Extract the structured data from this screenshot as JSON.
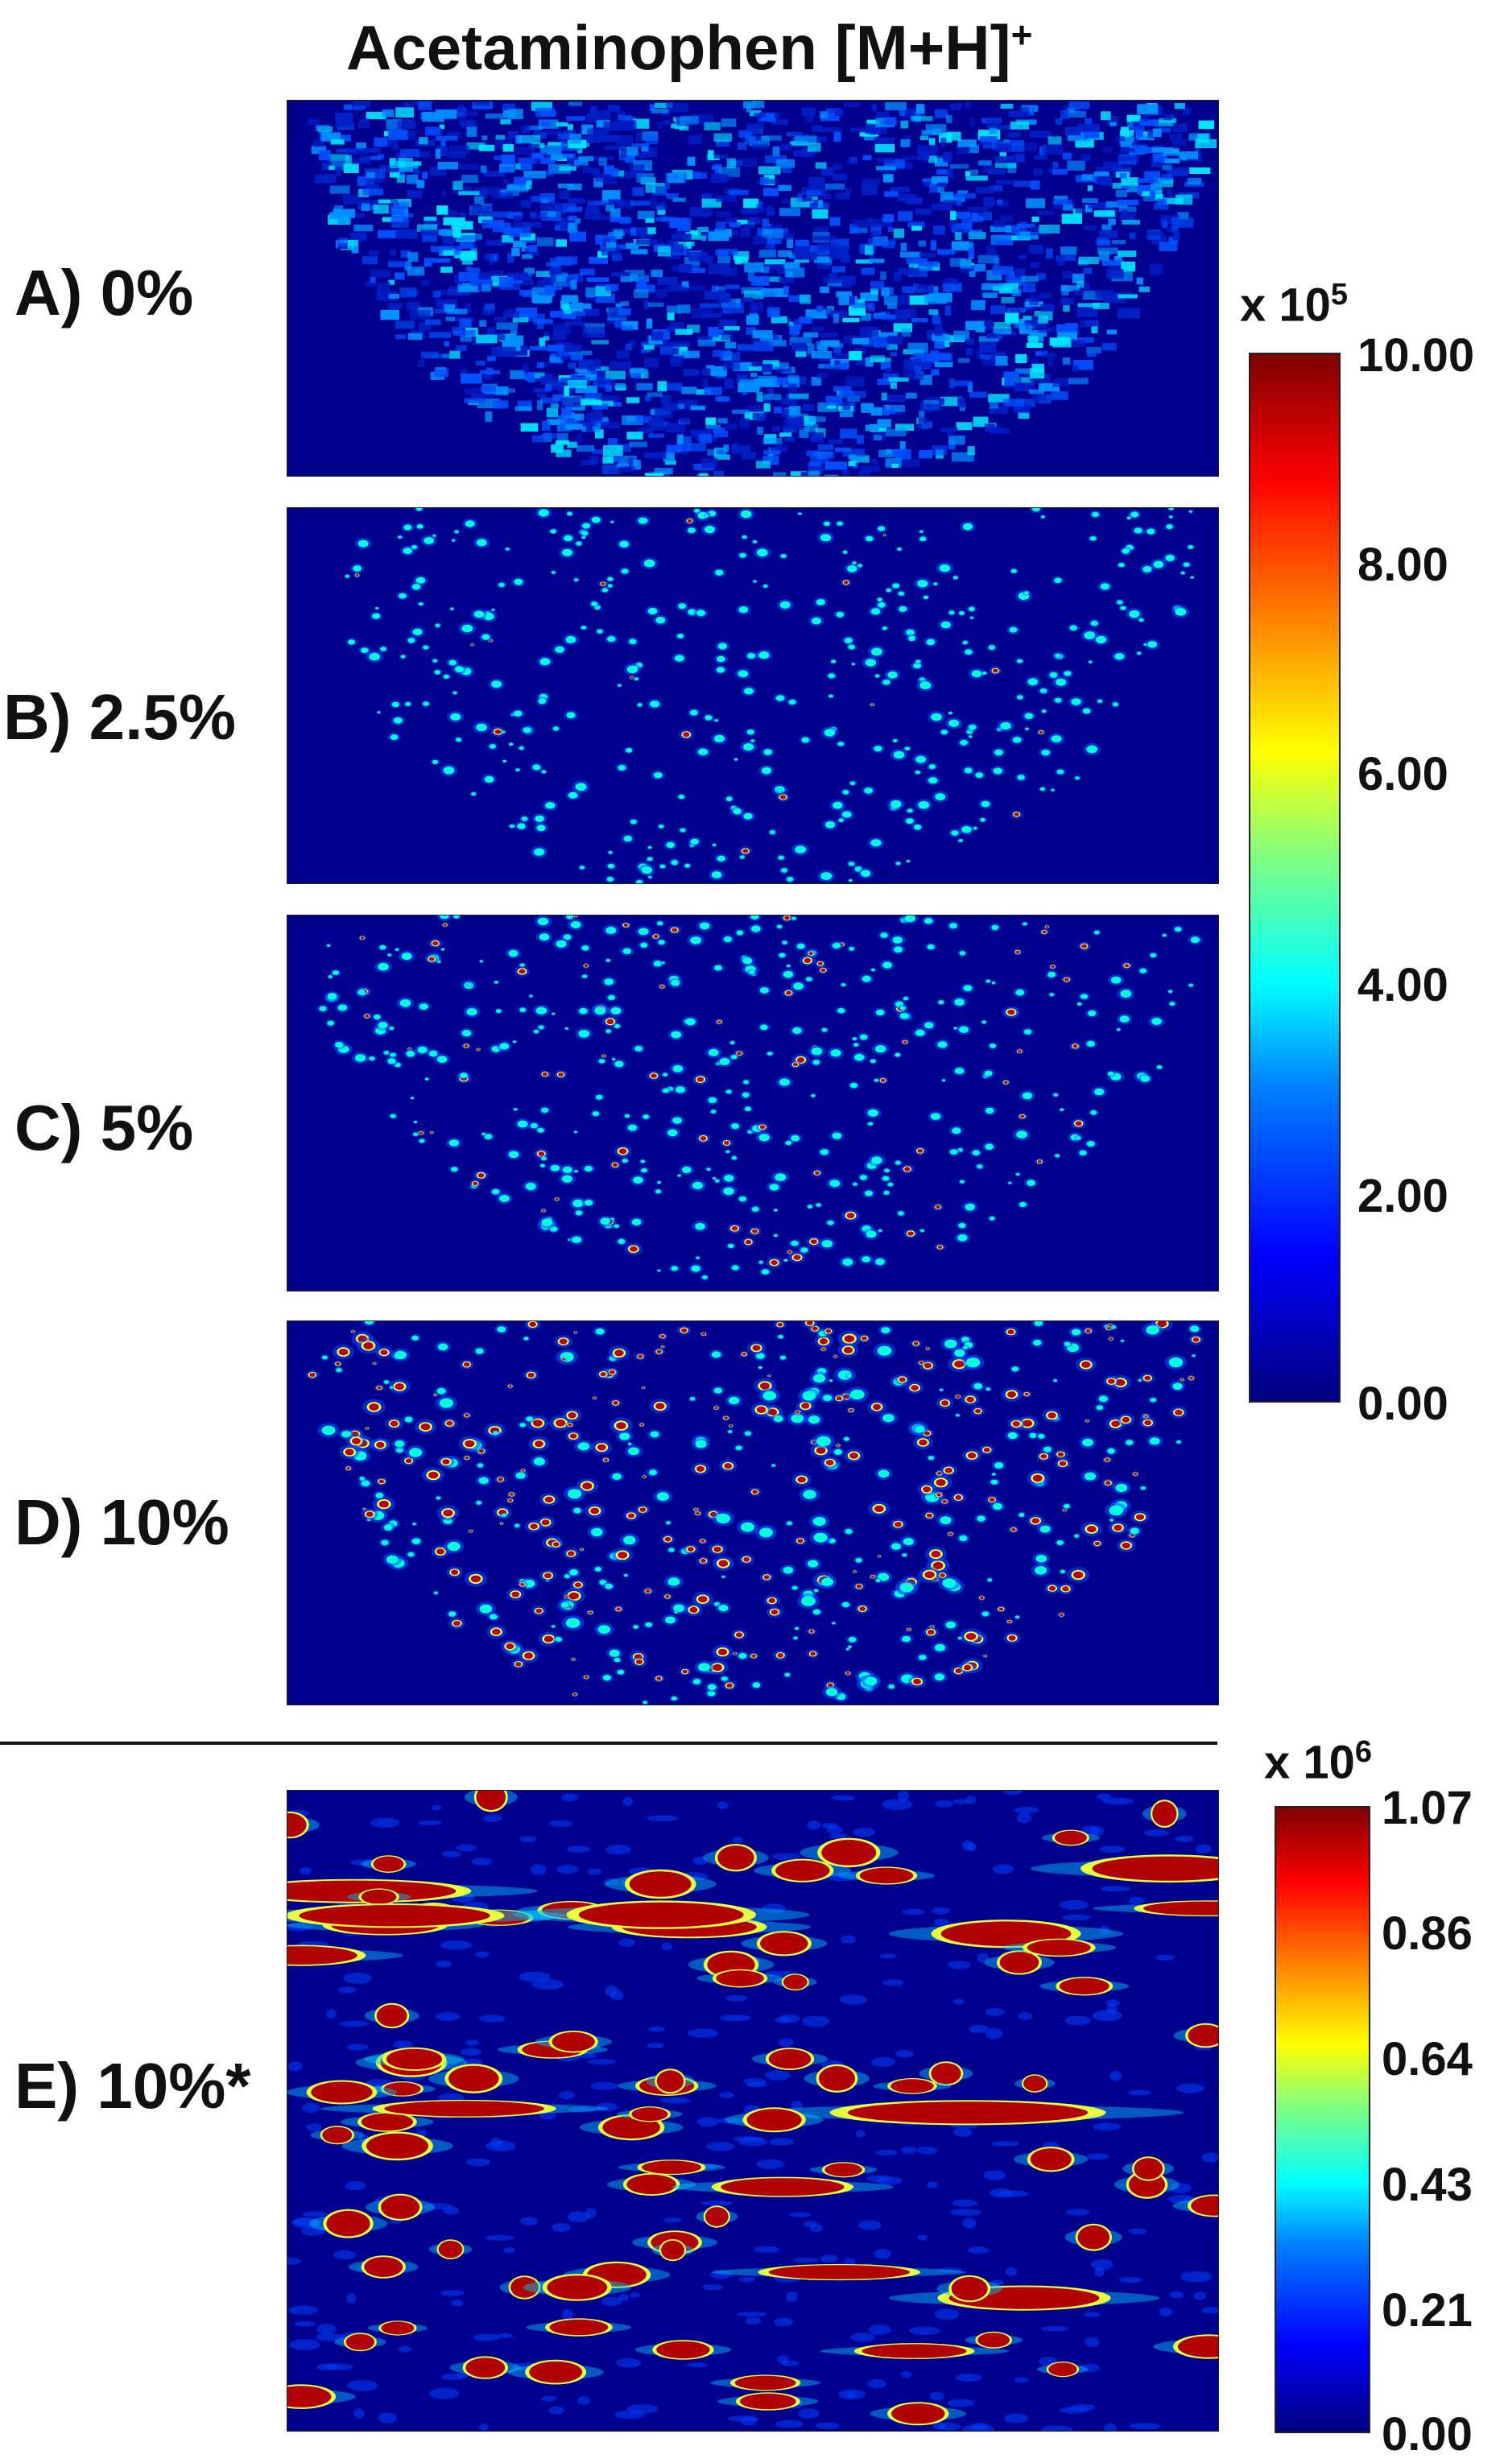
{
  "title": {
    "text": "Acetaminophen [M+H]",
    "sup": "+"
  },
  "panels": [
    {
      "label": "A) 0%"
    },
    {
      "label": "B) 2.5%"
    },
    {
      "label": "C) 5%"
    },
    {
      "label": "D) 10%"
    },
    {
      "label": "E) 10%*"
    }
  ],
  "colorbar_top": {
    "multiplier": "x 10",
    "exponent": "5",
    "ticks": [
      "10.00",
      "8.00",
      "6.00",
      "4.00",
      "2.00",
      "0.00"
    ]
  },
  "colorbar_bottom": {
    "multiplier": "x 10",
    "exponent": "6",
    "ticks": [
      "1.07",
      "0.86",
      "0.64",
      "0.43",
      "0.21",
      "0.00"
    ]
  },
  "colors": {
    "background": "#00008f",
    "low": "#0000ff",
    "mid": "#00ffff",
    "high": "#7f0000"
  }
}
